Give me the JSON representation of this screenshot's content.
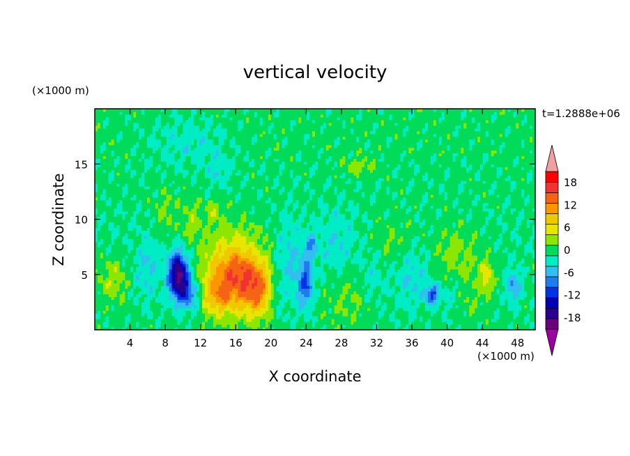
{
  "chart_data": {
    "type": "heatmap",
    "title": "vertical velocity",
    "xlabel": "X coordinate",
    "ylabel": "Z coordinate",
    "x_units": "(×1000 m)",
    "y_units": "(×1000 m)",
    "time_label": "t=1.2888e+06",
    "xlim": [
      0,
      50
    ],
    "ylim": [
      0,
      20
    ],
    "x_ticks": [
      4,
      8,
      12,
      16,
      20,
      24,
      28,
      32,
      36,
      40,
      44,
      48
    ],
    "x_tick_labels": [
      "4",
      "8",
      "12",
      "16",
      "20",
      "24",
      "28",
      "32",
      "36",
      "40",
      "44",
      "48"
    ],
    "y_ticks": [
      5,
      10,
      15
    ],
    "y_tick_labels": [
      "5",
      "10",
      "15"
    ],
    "colorbar": {
      "levels": [
        -21,
        -18,
        -15,
        -12,
        -9,
        -6,
        -3,
        0,
        3,
        6,
        9,
        12,
        15,
        18,
        21
      ],
      "labels": [
        "18",
        "12",
        "6",
        "0",
        "-6",
        "-12",
        "-18"
      ],
      "label_values": [
        18,
        12,
        6,
        0,
        -6,
        -12,
        -18
      ],
      "colors": [
        "#6a007a",
        "#2a008c",
        "#0000b4",
        "#0032e6",
        "#1e7cf0",
        "#32bef0",
        "#00ecc6",
        "#00dc5a",
        "#8ce600",
        "#e6e600",
        "#f0c800",
        "#ff9600",
        "#f56414",
        "#f03232",
        "#ff0000"
      ],
      "under_color": "#9a00a0",
      "over_color": "#f0a0a0"
    },
    "features": [
      {
        "x": 9.5,
        "z": 5.0,
        "w": -20,
        "sx": 0.8,
        "sz": 1.4
      },
      {
        "x": 10.8,
        "z": 3.2,
        "w": -9,
        "sx": 1.0,
        "sz": 1.0
      },
      {
        "x": 14.8,
        "z": 4.6,
        "w": 10,
        "sx": 2.0,
        "sz": 2.3
      },
      {
        "x": 18.4,
        "z": 3.8,
        "w": 14,
        "sx": 1.4,
        "sz": 1.8
      },
      {
        "x": 16.2,
        "z": 5.3,
        "w": 6,
        "sx": 1.4,
        "sz": 1.4
      },
      {
        "x": 13.8,
        "z": 3.0,
        "w": 6,
        "sx": 1.4,
        "sz": 1.1
      },
      {
        "x": 16.5,
        "z": 8.0,
        "w": 3,
        "sx": 3.0,
        "sz": 1.8
      },
      {
        "x": 24.0,
        "z": 4.3,
        "w": -10,
        "sx": 0.6,
        "sz": 1.5
      },
      {
        "x": 24.5,
        "z": 7.8,
        "w": -6,
        "sx": 0.5,
        "sz": 0.8
      },
      {
        "x": 38.3,
        "z": 3.2,
        "w": -10,
        "sx": 0.6,
        "sz": 0.6
      },
      {
        "x": 44.5,
        "z": 4.8,
        "w": 7,
        "sx": 0.5,
        "sz": 1.0
      },
      {
        "x": 47.5,
        "z": 4.0,
        "w": -7,
        "sx": 0.6,
        "sz": 1.0
      },
      {
        "x": 30.0,
        "z": 14.8,
        "w": 4,
        "sx": 1.4,
        "sz": 0.5
      },
      {
        "x": 2.0,
        "z": 4.5,
        "w": 4,
        "sx": 1.2,
        "sz": 1.5
      },
      {
        "x": 41.0,
        "z": 6.5,
        "w": 4,
        "sx": 2.0,
        "sz": 2.0
      },
      {
        "x": 34.0,
        "z": 8.0,
        "w": 3,
        "sx": 1.8,
        "sz": 1.5
      },
      {
        "x": 42.5,
        "z": 2.5,
        "w": 2,
        "sx": 1.2,
        "sz": 1.2
      },
      {
        "x": 6.0,
        "z": 5.5,
        "w": -4,
        "sx": 1.0,
        "sz": 2.0
      },
      {
        "x": 22.0,
        "z": 6.0,
        "w": -4,
        "sx": 1.2,
        "sz": 3.0
      },
      {
        "x": 27.5,
        "z": 7.5,
        "w": -3,
        "sx": 1.5,
        "sz": 2.5
      },
      {
        "x": 36.0,
        "z": 5.0,
        "w": -4,
        "sx": 1.5,
        "sz": 2.0
      },
      {
        "x": 40.5,
        "z": 3.5,
        "w": -3,
        "sx": 1.0,
        "sz": 1.5
      },
      {
        "x": 8.0,
        "z": 10.5,
        "w": 3,
        "sx": 1.0,
        "sz": 1.5
      },
      {
        "x": 11.0,
        "z": 10.0,
        "w": 4,
        "sx": 0.8,
        "sz": 1.2
      },
      {
        "x": 13.5,
        "z": 10.8,
        "w": 4,
        "sx": 0.6,
        "sz": 0.8
      },
      {
        "x": 28.5,
        "z": 3.0,
        "w": 3,
        "sx": 1.8,
        "sz": 2.0
      },
      {
        "x": 31.5,
        "z": 4.8,
        "w": -3,
        "sx": 1.0,
        "sz": 1.5
      },
      {
        "x": 20.5,
        "z": 3.5,
        "w": -3,
        "sx": 0.5,
        "sz": 1.5
      },
      {
        "x": 14.0,
        "z": 14.5,
        "w": -3,
        "sx": 1.0,
        "sz": 1.0
      },
      {
        "x": 10.5,
        "z": 17.0,
        "w": -3,
        "sx": 3.0,
        "sz": 1.5
      }
    ]
  }
}
